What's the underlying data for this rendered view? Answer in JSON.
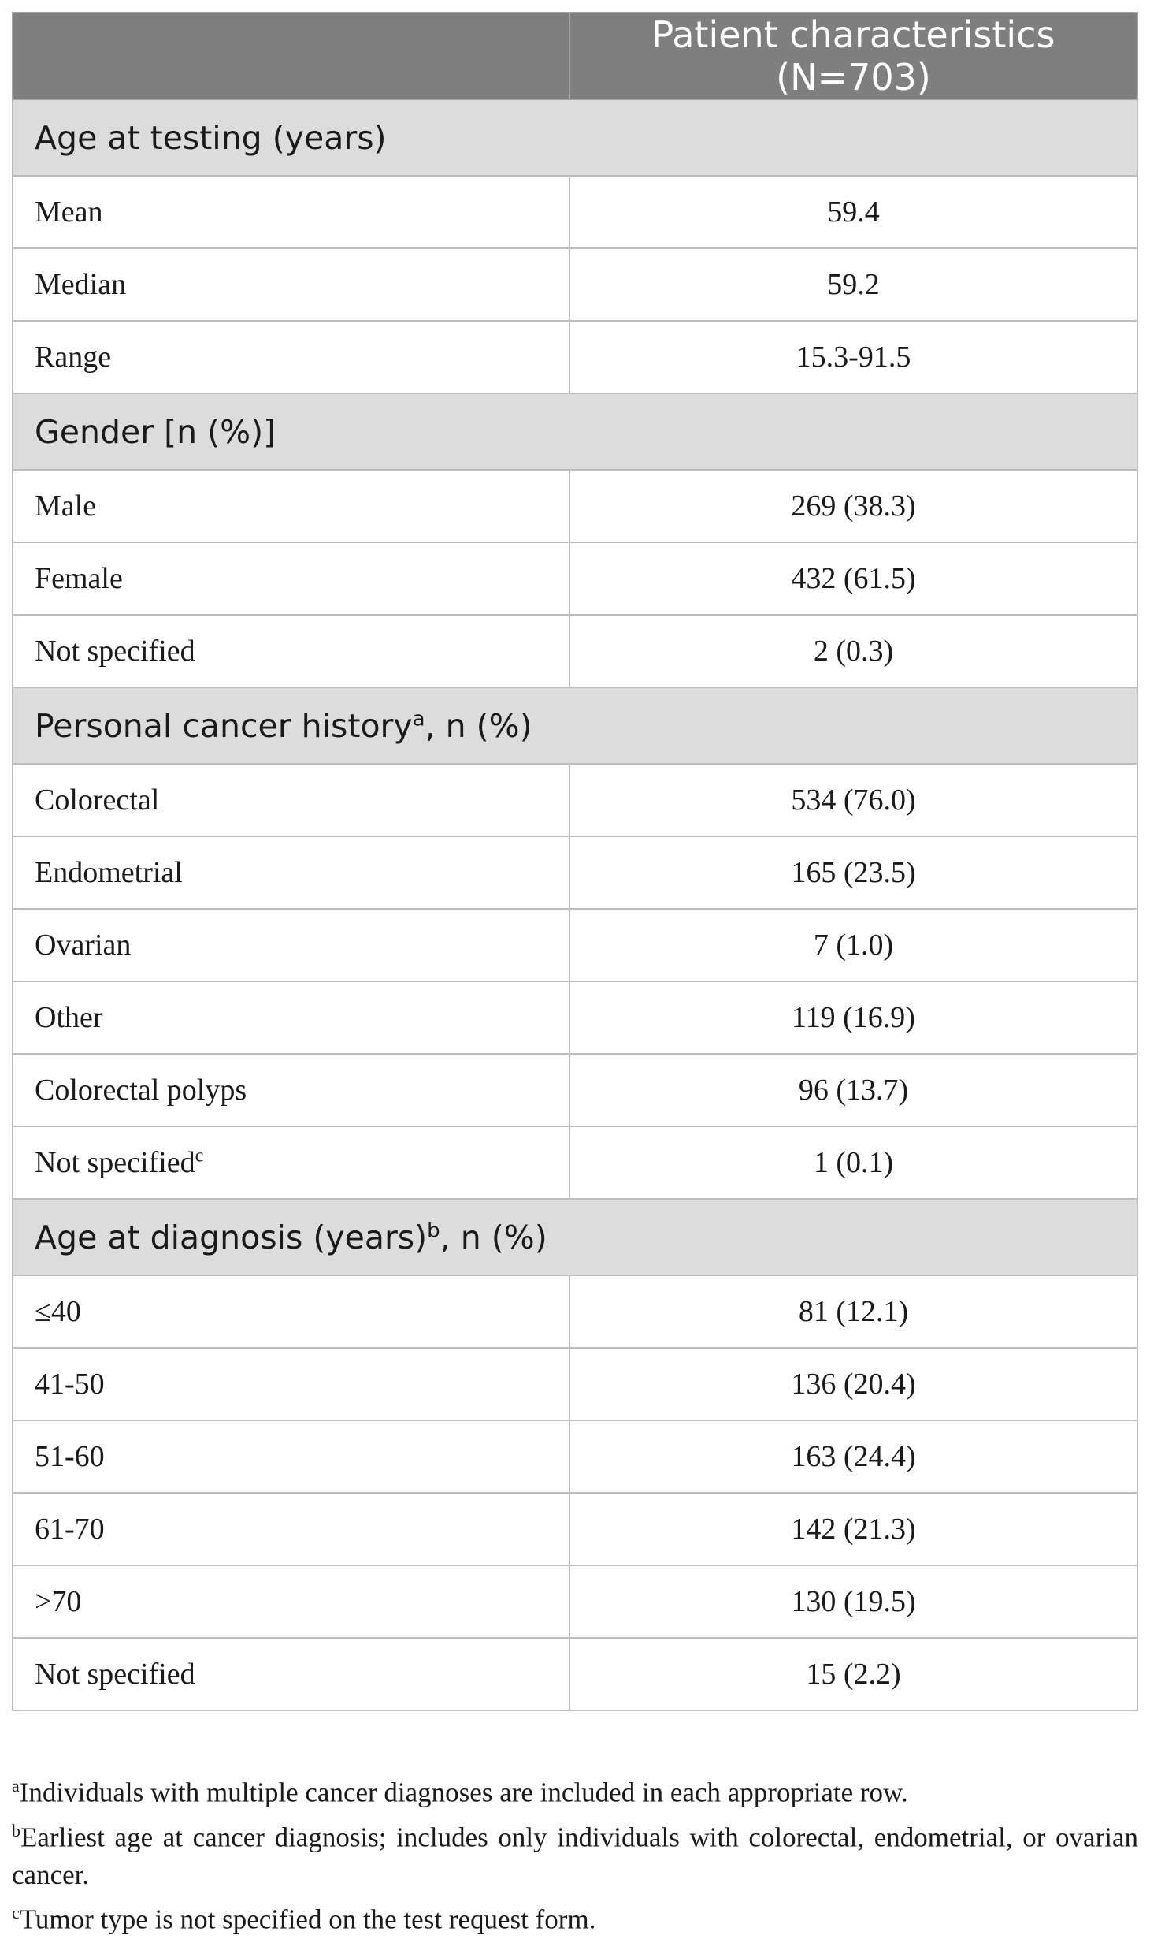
{
  "table": {
    "header": {
      "col1": "",
      "col2": "Patient characteristics (N=703)"
    },
    "sections": [
      {
        "title": "Age at testing (years)",
        "title_sup": "",
        "title_suffix": "",
        "rows": [
          {
            "label": "Mean",
            "label_sup": "",
            "value": "59.4"
          },
          {
            "label": "Median",
            "label_sup": "",
            "value": "59.2"
          },
          {
            "label": "Range",
            "label_sup": "",
            "value": "15.3-91.5"
          }
        ]
      },
      {
        "title": "Gender [n (%)]",
        "title_sup": "",
        "title_suffix": "",
        "rows": [
          {
            "label": "Male",
            "label_sup": "",
            "value": "269 (38.3)"
          },
          {
            "label": "Female",
            "label_sup": "",
            "value": "432 (61.5)"
          },
          {
            "label": "Not specified",
            "label_sup": "",
            "value": "2 (0.3)"
          }
        ]
      },
      {
        "title": "Personal cancer history",
        "title_sup": "a",
        "title_suffix": ", n (%)",
        "rows": [
          {
            "label": "Colorectal",
            "label_sup": "",
            "value": "534 (76.0)"
          },
          {
            "label": "Endometrial",
            "label_sup": "",
            "value": "165 (23.5)"
          },
          {
            "label": "Ovarian",
            "label_sup": "",
            "value": "7 (1.0)"
          },
          {
            "label": "Other",
            "label_sup": "",
            "value": "119 (16.9)"
          },
          {
            "label": "Colorectal polyps",
            "label_sup": "",
            "value": "96 (13.7)"
          },
          {
            "label": "Not specified",
            "label_sup": "c",
            "value": "1 (0.1)"
          }
        ]
      },
      {
        "title": "Age at diagnosis (years)",
        "title_sup": "b",
        "title_suffix": ", n (%)",
        "rows": [
          {
            "label": "≤40",
            "label_sup": "",
            "value": "81 (12.1)"
          },
          {
            "label": "41-50",
            "label_sup": "",
            "value": "136 (20.4)"
          },
          {
            "label": "51-60",
            "label_sup": "",
            "value": "163 (24.4)"
          },
          {
            "label": "61-70",
            "label_sup": "",
            "value": "142 (21.3)"
          },
          {
            "label": ">70",
            "label_sup": "",
            "value": "130 (19.5)"
          },
          {
            "label": "Not specified",
            "label_sup": "",
            "value": "15 (2.2)"
          }
        ]
      }
    ]
  },
  "footnotes": [
    {
      "marker": "a",
      "text": "Individuals with multiple cancer diagnoses are included in each appropriate row."
    },
    {
      "marker": "b",
      "text": "Earliest age at cancer diagnosis; includes only individuals with colorectal, endometrial, or ovarian cancer."
    },
    {
      "marker": "c",
      "text": "Tumor type is not specified on the test request form."
    }
  ]
}
